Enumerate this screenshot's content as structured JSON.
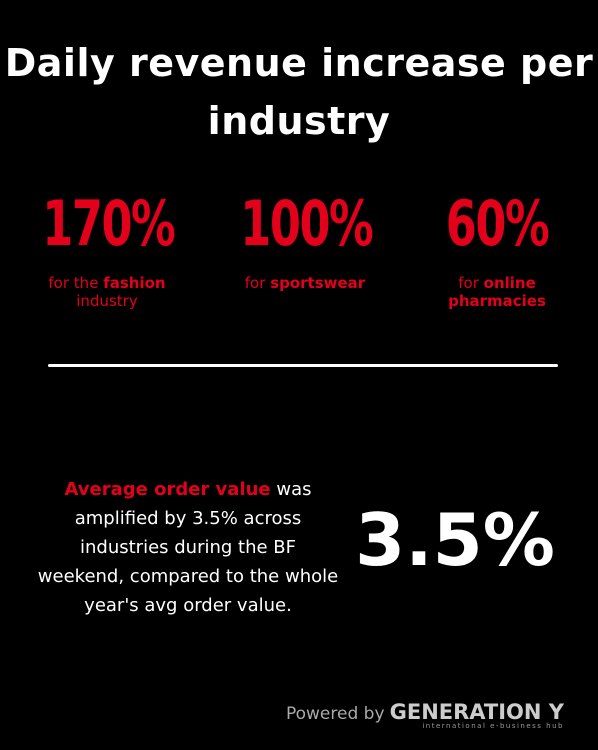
{
  "title": "Daily revenue increase per industry",
  "stats": [
    {
      "value": "170%",
      "prefix": "for the",
      "bold": "fashion",
      "suffix": "industry"
    },
    {
      "value": "100%",
      "prefix": "for",
      "bold": "sportswear"
    },
    {
      "value": "60%",
      "prefix": "for",
      "bold": "online pharmacies"
    }
  ],
  "summary": {
    "highlight": "Average order value",
    "text": "was amplified by 3.5% across industries during the BF weekend, compared to the whole year's avg order value.",
    "big_value": "3.5%"
  },
  "footer": {
    "powered": "Powered by",
    "brand": "GENERATION Y",
    "tagline": "international e-business hub"
  }
}
